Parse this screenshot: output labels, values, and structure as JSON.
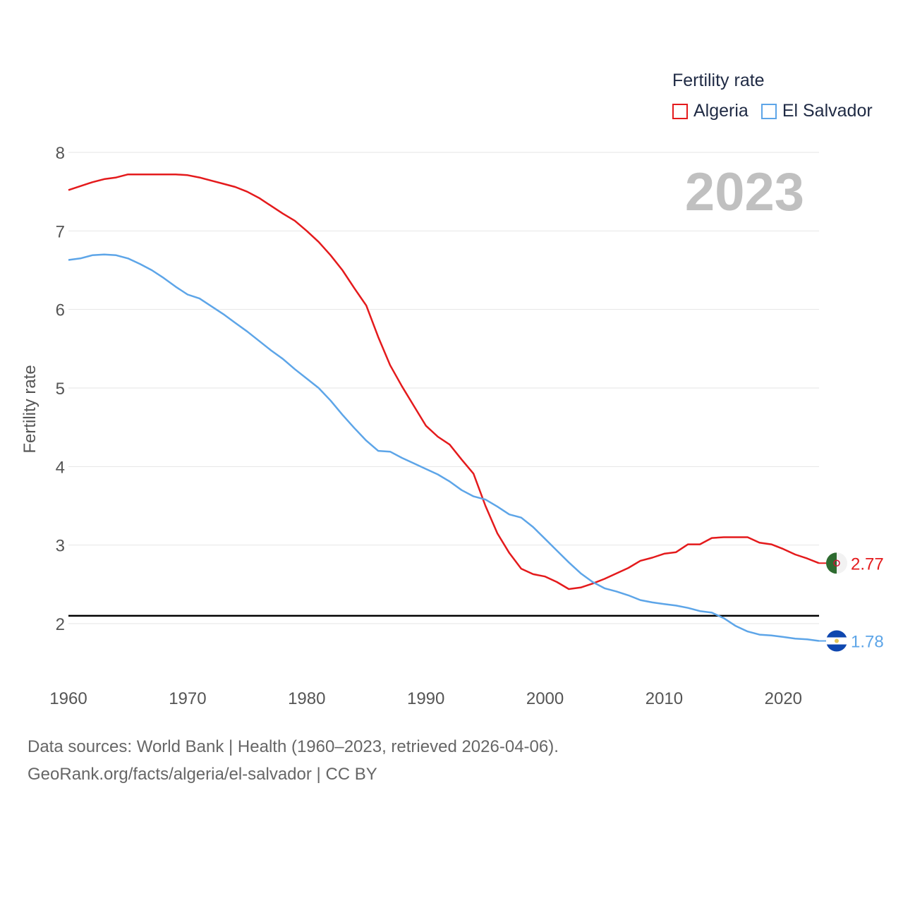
{
  "legend": {
    "title": "Fertility rate",
    "items": [
      {
        "label": "Algeria",
        "color": "#e41a1c"
      },
      {
        "label": "El Salvador",
        "color": "#5da5e8"
      }
    ]
  },
  "year_label": "2023",
  "source": {
    "line1": "Data sources: World Bank | Health (1960–2023, retrieved 2026-04-06).",
    "line2": "GeoRank.org/facts/algeria/el-salvador | CC BY"
  },
  "chart_data": {
    "type": "line",
    "ylabel": "Fertility rate",
    "xlabel": "",
    "xlim": [
      1960,
      2023
    ],
    "ylim": [
      1.3,
      8
    ],
    "x_ticks": [
      1960,
      1970,
      1980,
      1990,
      2000,
      2010,
      2020
    ],
    "y_ticks": [
      2,
      3,
      4,
      5,
      6,
      7,
      8
    ],
    "reference_line": {
      "y": 2.1,
      "color": "#000000"
    },
    "series": [
      {
        "name": "Algeria",
        "color": "#e41a1c",
        "flag": "algeria-flag",
        "end_label": "2.77",
        "points": [
          [
            1960,
            7.52
          ],
          [
            1962,
            7.62
          ],
          [
            1963,
            7.66
          ],
          [
            1964,
            7.68
          ],
          [
            1965,
            7.72
          ],
          [
            1966,
            7.72
          ],
          [
            1967,
            7.72
          ],
          [
            1968,
            7.72
          ],
          [
            1969,
            7.72
          ],
          [
            1970,
            7.71
          ],
          [
            1971,
            7.68
          ],
          [
            1972,
            7.64
          ],
          [
            1973,
            7.6
          ],
          [
            1974,
            7.56
          ],
          [
            1975,
            7.5
          ],
          [
            1976,
            7.42
          ],
          [
            1977,
            7.32
          ],
          [
            1978,
            7.22
          ],
          [
            1979,
            7.13
          ],
          [
            1980,
            7.0
          ],
          [
            1981,
            6.86
          ],
          [
            1982,
            6.69
          ],
          [
            1983,
            6.5
          ],
          [
            1984,
            6.27
          ],
          [
            1985,
            6.05
          ],
          [
            1986,
            5.65
          ],
          [
            1987,
            5.29
          ],
          [
            1988,
            5.02
          ],
          [
            1989,
            4.77
          ],
          [
            1990,
            4.52
          ],
          [
            1991,
            4.38
          ],
          [
            1992,
            4.28
          ],
          [
            1993,
            4.09
          ],
          [
            1994,
            3.91
          ],
          [
            1995,
            3.5
          ],
          [
            1996,
            3.15
          ],
          [
            1997,
            2.9
          ],
          [
            1998,
            2.7
          ],
          [
            1999,
            2.63
          ],
          [
            2000,
            2.6
          ],
          [
            2001,
            2.53
          ],
          [
            2002,
            2.44
          ],
          [
            2003,
            2.46
          ],
          [
            2004,
            2.51
          ],
          [
            2005,
            2.57
          ],
          [
            2006,
            2.64
          ],
          [
            2007,
            2.71
          ],
          [
            2008,
            2.8
          ],
          [
            2009,
            2.84
          ],
          [
            2010,
            2.89
          ],
          [
            2011,
            2.91
          ],
          [
            2012,
            3.01
          ],
          [
            2013,
            3.01
          ],
          [
            2014,
            3.09
          ],
          [
            2015,
            3.1
          ],
          [
            2016,
            3.1
          ],
          [
            2017,
            3.1
          ],
          [
            2018,
            3.03
          ],
          [
            2019,
            3.01
          ],
          [
            2020,
            2.95
          ],
          [
            2021,
            2.88
          ],
          [
            2022,
            2.83
          ],
          [
            2023,
            2.77
          ]
        ]
      },
      {
        "name": "El Salvador",
        "color": "#5da5e8",
        "flag": "el-salvador-flag",
        "end_label": "1.78",
        "points": [
          [
            1960,
            6.63
          ],
          [
            1961,
            6.65
          ],
          [
            1962,
            6.69
          ],
          [
            1963,
            6.7
          ],
          [
            1964,
            6.69
          ],
          [
            1965,
            6.65
          ],
          [
            1966,
            6.58
          ],
          [
            1967,
            6.5
          ],
          [
            1968,
            6.4
          ],
          [
            1969,
            6.29
          ],
          [
            1970,
            6.19
          ],
          [
            1971,
            6.14
          ],
          [
            1972,
            6.04
          ],
          [
            1973,
            5.94
          ],
          [
            1974,
            5.83
          ],
          [
            1975,
            5.72
          ],
          [
            1976,
            5.6
          ],
          [
            1977,
            5.48
          ],
          [
            1978,
            5.37
          ],
          [
            1979,
            5.24
          ],
          [
            1980,
            5.12
          ],
          [
            1981,
            5.0
          ],
          [
            1982,
            4.84
          ],
          [
            1983,
            4.66
          ],
          [
            1984,
            4.49
          ],
          [
            1985,
            4.33
          ],
          [
            1986,
            4.2
          ],
          [
            1987,
            4.19
          ],
          [
            1988,
            4.11
          ],
          [
            1989,
            4.04
          ],
          [
            1990,
            3.97
          ],
          [
            1991,
            3.9
          ],
          [
            1992,
            3.81
          ],
          [
            1993,
            3.7
          ],
          [
            1994,
            3.62
          ],
          [
            1995,
            3.58
          ],
          [
            1996,
            3.49
          ],
          [
            1997,
            3.39
          ],
          [
            1998,
            3.35
          ],
          [
            1999,
            3.23
          ],
          [
            2000,
            3.08
          ],
          [
            2001,
            2.93
          ],
          [
            2002,
            2.78
          ],
          [
            2003,
            2.64
          ],
          [
            2004,
            2.53
          ],
          [
            2005,
            2.45
          ],
          [
            2006,
            2.41
          ],
          [
            2007,
            2.36
          ],
          [
            2008,
            2.3
          ],
          [
            2009,
            2.27
          ],
          [
            2010,
            2.25
          ],
          [
            2011,
            2.23
          ],
          [
            2012,
            2.2
          ],
          [
            2013,
            2.16
          ],
          [
            2014,
            2.14
          ],
          [
            2015,
            2.07
          ],
          [
            2016,
            1.97
          ],
          [
            2017,
            1.9
          ],
          [
            2018,
            1.86
          ],
          [
            2019,
            1.85
          ],
          [
            2020,
            1.83
          ],
          [
            2021,
            1.81
          ],
          [
            2022,
            1.8
          ],
          [
            2023,
            1.78
          ]
        ]
      }
    ]
  }
}
